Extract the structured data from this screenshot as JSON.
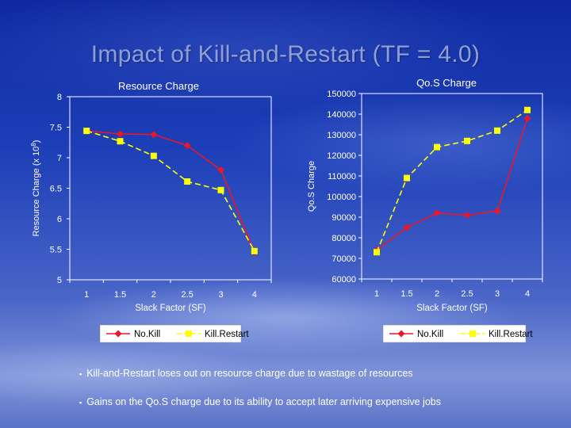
{
  "slide": {
    "title": "Impact of Kill-and-Restart (TF = 4.0)",
    "bullets": [
      "Kill-and-Restart loses out on resource charge due to wastage of resources",
      "Gains on the Qo.S charge due to its ability to accept later arriving expensive jobs"
    ]
  },
  "colors": {
    "nokill": "#e8172b",
    "killrestart": "#ffff00",
    "axis": "#ffffff"
  },
  "chart_data": [
    {
      "type": "line",
      "title": "Resource Charge",
      "xlabel": "Slack Factor (SF)",
      "ylabel": "Resource Charge (x 10^8)",
      "categories": [
        "1",
        "1.5",
        "2",
        "2.5",
        "3",
        "4"
      ],
      "ylim": [
        5,
        8
      ],
      "yticks": [
        "5",
        "5.5",
        "6",
        "6.5",
        "7",
        "7.5",
        "8"
      ],
      "grid": false,
      "legend": "bottom",
      "series": [
        {
          "name": "No.Kill",
          "color": "#e8172b",
          "marker": "diamond",
          "dash": "solid",
          "values": [
            7.44,
            7.39,
            7.38,
            7.2,
            6.8,
            5.45
          ]
        },
        {
          "name": "Kill.Restart",
          "color": "#ffff00",
          "marker": "square",
          "dash": "dashed",
          "values": [
            7.44,
            7.27,
            7.03,
            6.61,
            6.47,
            5.47
          ]
        }
      ]
    },
    {
      "type": "line",
      "title": "Qo.S Charge",
      "xlabel": "Slack Factor (SF)",
      "ylabel": "Qo.S Charge",
      "categories": [
        "1",
        "1.5",
        "2",
        "2.5",
        "3",
        "4"
      ],
      "ylim": [
        60000,
        150000
      ],
      "yticks": [
        "60000",
        "70000",
        "80000",
        "90000",
        "100000",
        "110000",
        "120000",
        "130000",
        "140000",
        "150000"
      ],
      "grid": false,
      "legend": "bottom",
      "series": [
        {
          "name": "No.Kill",
          "color": "#e8172b",
          "marker": "diamond",
          "dash": "solid",
          "values": [
            74000,
            85000,
            92000,
            91000,
            93000,
            138000
          ]
        },
        {
          "name": "Kill.Restart",
          "color": "#ffff00",
          "marker": "square",
          "dash": "dashed",
          "values": [
            73000,
            109000,
            124000,
            127000,
            132000,
            142000
          ]
        }
      ]
    }
  ]
}
